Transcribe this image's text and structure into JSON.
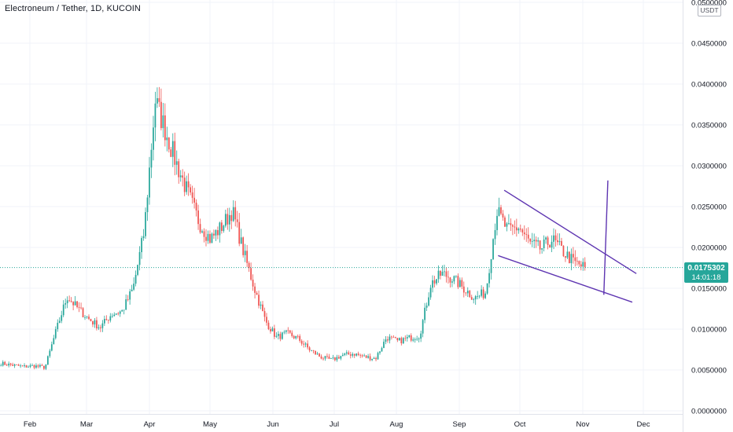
{
  "header": {
    "symbol_title": "Electroneum / Tether, 1D, KUCOIN"
  },
  "price_axis": {
    "unit": "USDT"
  },
  "last_price": {
    "value": "0.0175302",
    "countdown": "14:01:18",
    "color": "#26a69a"
  },
  "colors": {
    "up": "#26a69a",
    "down": "#ef5350",
    "pattern": "#5e35b1",
    "grid": "#f0f3fa"
  },
  "chart_data": {
    "type": "candlestick",
    "title": "Electroneum / Tether, 1D, KUCOIN",
    "ylim": [
      0,
      0.05
    ],
    "y_ticks": [
      "0.0500000",
      "0.0450000",
      "0.0400000",
      "0.0350000",
      "0.0300000",
      "0.0250000",
      "0.0200000",
      "0.0150000",
      "0.0100000",
      "0.0050000",
      "0.0000000"
    ],
    "y_tick_values": [
      0.05,
      0.045,
      0.04,
      0.035,
      0.03,
      0.025,
      0.02,
      0.015,
      0.01,
      0.005,
      0.0
    ],
    "x_ticks": [
      "Feb",
      "Mar",
      "Apr",
      "May",
      "Jun",
      "Jul",
      "Aug",
      "Sep",
      "Oct",
      "Nov",
      "Dec"
    ],
    "last_price": 0.0175302,
    "close_series_weekly": [
      0.0058,
      0.0056,
      0.0054,
      0.0055,
      0.0053,
      0.0098,
      0.014,
      0.0125,
      0.0112,
      0.0102,
      0.0118,
      0.0122,
      0.015,
      0.022,
      0.038,
      0.034,
      0.03,
      0.0265,
      0.023,
      0.021,
      0.0225,
      0.0245,
      0.0195,
      0.015,
      0.011,
      0.009,
      0.0095,
      0.0088,
      0.0075,
      0.0066,
      0.0062,
      0.0068,
      0.007,
      0.0066,
      0.0064,
      0.009,
      0.0085,
      0.0089,
      0.0092,
      0.0155,
      0.0168,
      0.0162,
      0.015,
      0.0138,
      0.0145,
      0.0245,
      0.022,
      0.0225,
      0.0205,
      0.0198,
      0.021,
      0.0195,
      0.0182,
      0.0175
    ],
    "patterns": [
      {
        "name": "falling wedge",
        "upper_line": [
          [
            "2021-09-18",
            0.027
          ],
          [
            "2021-11-22",
            0.0168
          ]
        ],
        "lower_line": [
          [
            "2021-09-15",
            0.019
          ],
          [
            "2021-11-20",
            0.0133
          ]
        ]
      },
      {
        "name": "breakout projection",
        "line": [
          [
            "2021-11-06",
            0.0142
          ],
          [
            "2021-11-08",
            0.0282
          ]
        ]
      }
    ]
  }
}
